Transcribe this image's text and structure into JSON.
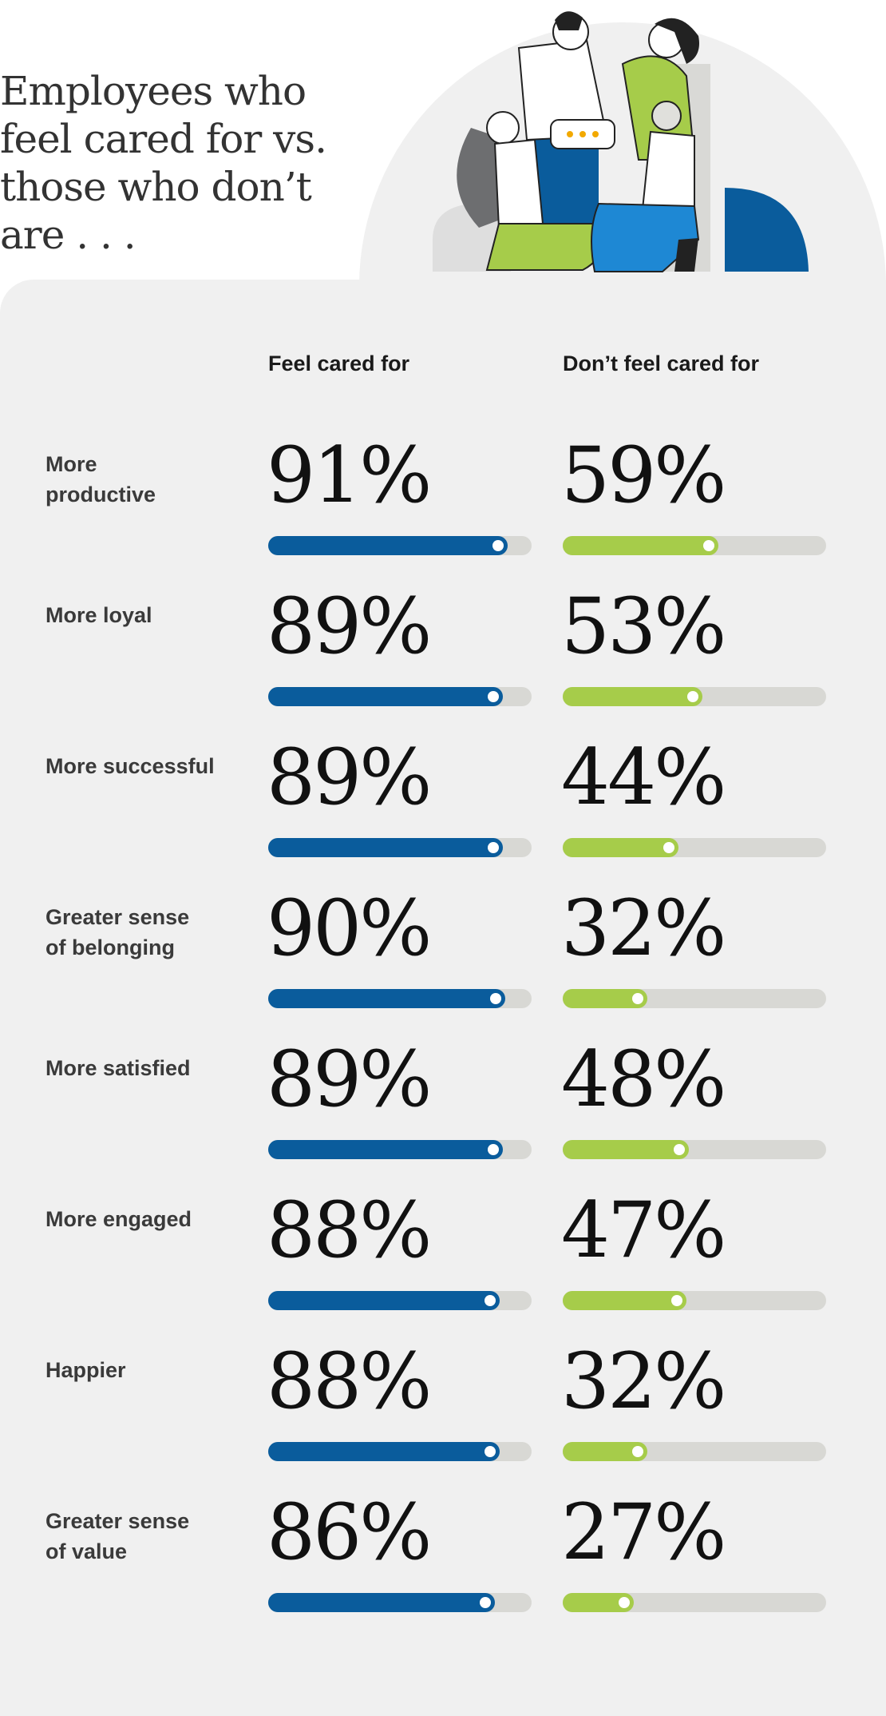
{
  "headline": "Employees who feel cared for vs. those who don’t are . . .",
  "chart_data": {
    "type": "bar",
    "categories": [
      "More productive",
      "More loyal",
      "More successful",
      "Greater sense of belonging",
      "More satisfied",
      "More engaged",
      "Happier",
      "Greater sense of value"
    ],
    "series": [
      {
        "name": "Feel cared for",
        "values": [
          91,
          89,
          89,
          90,
          89,
          88,
          88,
          86
        ]
      },
      {
        "name": "Don’t feel cared for",
        "values": [
          59,
          53,
          44,
          32,
          48,
          47,
          32,
          27
        ]
      }
    ],
    "value_labels": [
      [
        "91%",
        "89%",
        "89%",
        "90%",
        "89%",
        "88%",
        "88%",
        "86%"
      ],
      [
        "59%",
        "53%",
        "44%",
        "32%",
        "48%",
        "47%",
        "32%",
        "27%"
      ]
    ],
    "row_labels": [
      "More\nproductive",
      "More loyal",
      "More successful",
      "Greater sense\nof belonging",
      "More satisfied",
      "More engaged",
      "Happier",
      "Greater sense\nof value"
    ],
    "ylim": [
      0,
      100
    ],
    "colors": {
      "feel_cared_for": "#0a5c9c",
      "dont_feel_cared_for": "#a6cc4a",
      "track": "#d8d8d4"
    }
  },
  "illustration": {
    "icon": "people-conversation-illustration",
    "colors": [
      "#0a5c9c",
      "#a6cc4a",
      "#1e88d4",
      "#6d6e70",
      "#e0e0dc",
      "#f2a900"
    ]
  }
}
